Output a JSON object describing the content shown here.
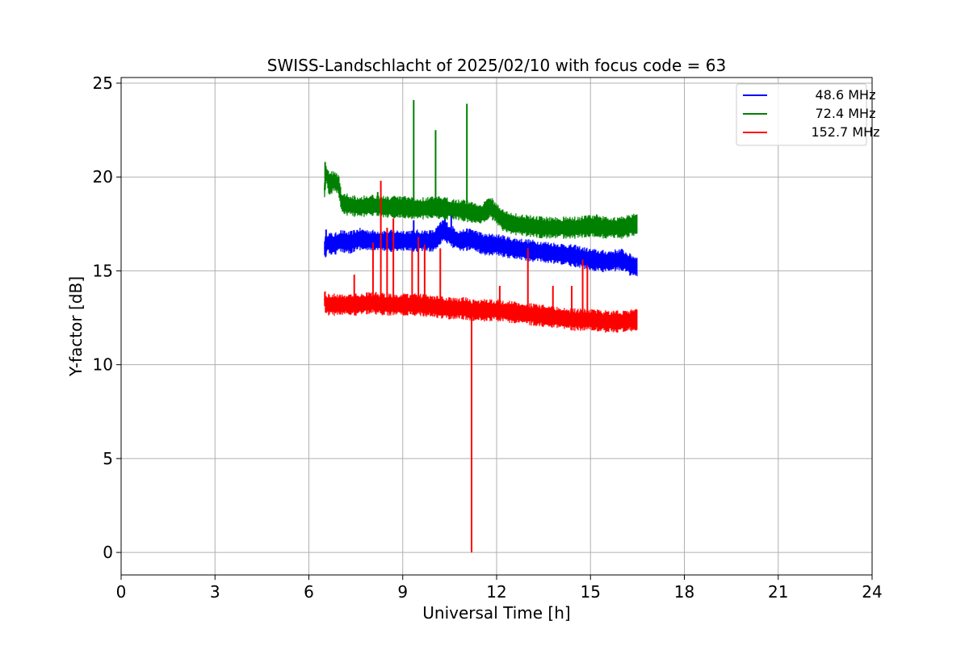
{
  "chart_data": {
    "type": "line",
    "title": "SWISS-Landschlacht of 2025/02/10 with focus code = 63",
    "xlabel": "Universal Time [h]",
    "ylabel": "Y-factor [dB]",
    "xlim": [
      0,
      24
    ],
    "ylim": [
      -1.2,
      25.3
    ],
    "xticks": [
      0,
      3,
      6,
      9,
      12,
      15,
      18,
      21,
      24
    ],
    "yticks": [
      0,
      5,
      10,
      15,
      20,
      25
    ],
    "grid": true,
    "legend_position": "top-right",
    "series": [
      {
        "name": "48.6 MHz",
        "color": "#0000ff",
        "x": [
          6.5,
          6.6,
          6.8,
          7.0,
          7.3,
          7.6,
          8.0,
          8.5,
          9.0,
          9.5,
          10.0,
          10.3,
          10.5,
          10.8,
          11.2,
          11.6,
          12.0,
          12.5,
          13.0,
          13.5,
          14.0,
          14.5,
          15.0,
          15.5,
          16.0,
          16.3,
          16.5
        ],
        "y": [
          16.2,
          16.5,
          16.4,
          16.6,
          16.5,
          16.7,
          16.6,
          16.6,
          16.6,
          16.6,
          16.6,
          17.2,
          16.9,
          16.6,
          16.7,
          16.4,
          16.4,
          16.2,
          16.1,
          16.0,
          15.9,
          15.8,
          15.6,
          15.5,
          15.6,
          15.3,
          15.2
        ],
        "spikes": [
          {
            "x": 6.55,
            "y": 17.2
          },
          {
            "x": 9.35,
            "y": 17.7
          },
          {
            "x": 10.35,
            "y": 17.8
          },
          {
            "x": 10.55,
            "y": 18.1
          },
          {
            "x": 11.0,
            "y": 17.1
          }
        ]
      },
      {
        "name": "72.4 MHz",
        "color": "#008000",
        "x": [
          6.5,
          6.55,
          6.65,
          6.8,
          6.95,
          7.05,
          7.3,
          7.6,
          8.0,
          8.5,
          9.0,
          9.5,
          10.0,
          10.5,
          11.0,
          11.5,
          11.8,
          12.2,
          12.5,
          13.0,
          13.5,
          14.0,
          14.5,
          15.0,
          15.5,
          16.0,
          16.5
        ],
        "y": [
          19.3,
          20.2,
          19.6,
          19.8,
          19.6,
          18.6,
          18.5,
          18.4,
          18.5,
          18.4,
          18.4,
          18.3,
          18.4,
          18.3,
          18.2,
          18.0,
          18.4,
          17.7,
          17.5,
          17.4,
          17.3,
          17.3,
          17.3,
          17.4,
          17.3,
          17.3,
          17.5
        ],
        "spikes": [
          {
            "x": 6.52,
            "y": 20.8
          },
          {
            "x": 8.2,
            "y": 19.2
          },
          {
            "x": 9.35,
            "y": 24.1
          },
          {
            "x": 10.05,
            "y": 22.5
          },
          {
            "x": 11.05,
            "y": 23.9
          },
          {
            "x": 15.2,
            "y": 18.0
          },
          {
            "x": 16.25,
            "y": 17.9
          }
        ]
      },
      {
        "name": "152.7 MHz",
        "color": "#ff0000",
        "x": [
          6.5,
          6.55,
          6.8,
          7.0,
          7.5,
          8.0,
          8.5,
          9.0,
          9.5,
          10.0,
          10.5,
          11.0,
          11.2,
          11.5,
          12.0,
          12.5,
          13.0,
          13.5,
          14.0,
          14.5,
          15.0,
          15.5,
          16.0,
          16.5
        ],
        "y": [
          13.5,
          13.2,
          13.2,
          13.2,
          13.2,
          13.3,
          13.2,
          13.2,
          13.2,
          13.1,
          13.0,
          13.0,
          12.9,
          12.9,
          12.9,
          12.8,
          12.7,
          12.6,
          12.5,
          12.4,
          12.4,
          12.3,
          12.3,
          12.4
        ],
        "spikes": [
          {
            "x": 7.45,
            "y": 14.8
          },
          {
            "x": 8.05,
            "y": 16.5
          },
          {
            "x": 8.3,
            "y": 19.8
          },
          {
            "x": 8.5,
            "y": 17.3
          },
          {
            "x": 8.7,
            "y": 17.8
          },
          {
            "x": 9.3,
            "y": 16.1
          },
          {
            "x": 9.5,
            "y": 16.8
          },
          {
            "x": 9.7,
            "y": 16.4
          },
          {
            "x": 10.2,
            "y": 16.2
          },
          {
            "x": 11.2,
            "y": 0.0
          },
          {
            "x": 12.1,
            "y": 14.2
          },
          {
            "x": 13.0,
            "y": 16.2
          },
          {
            "x": 13.8,
            "y": 14.2
          },
          {
            "x": 14.4,
            "y": 14.2
          },
          {
            "x": 14.75,
            "y": 15.6
          },
          {
            "x": 14.9,
            "y": 15.3
          }
        ]
      }
    ]
  }
}
